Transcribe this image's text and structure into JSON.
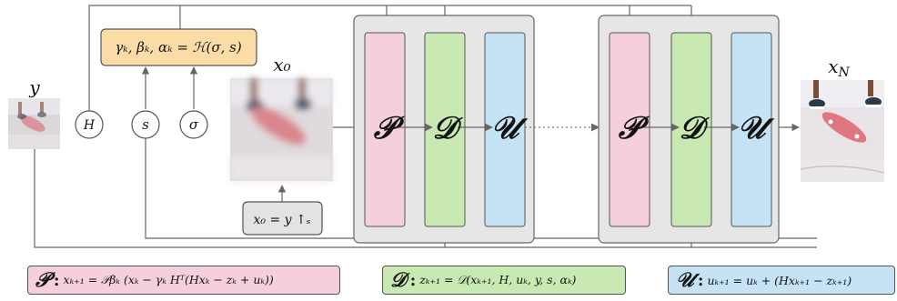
{
  "labels": {
    "input": "y",
    "init": "x₀",
    "output": "x_N",
    "output_main": "x",
    "output_sub": "N"
  },
  "hyper_box": "γₖ, βₖ, αₖ = ℋ(σ, s)",
  "init_box": "x₀ = y ↑ₛ",
  "nodes": {
    "h": "H",
    "s": "s",
    "sigma": "σ"
  },
  "operators": {
    "p": "𝒫",
    "d": "𝒟",
    "u": "𝒰"
  },
  "equations": {
    "p": "xₖ₊₁ = 𝒫βₖ (xₖ − γₖ Hᵀ(Hxₖ − zₖ + uₖ))",
    "d": "zₖ₊₁ = 𝒟(xₖ₊₁, H, uₖ, y, s, αₖ)",
    "u": "uₖ₊₁ = uₖ + (Hxₖ₊₁ − zₖ₊₁)"
  },
  "colors": {
    "p_fill": "#f6cfdc",
    "d_fill": "#c9e9b3",
    "u_fill": "#c5e3f5",
    "hyper_fill": "#fbdca7",
    "stage_fill": "#e6e6e6",
    "init_fill": "#e3e3e3",
    "line": "#666666"
  }
}
